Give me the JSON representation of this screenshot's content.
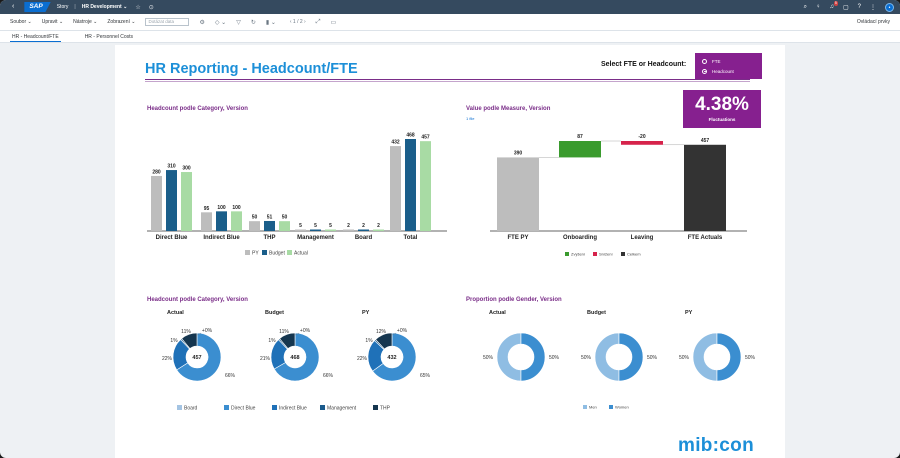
{
  "shell": {
    "logo": "SAP",
    "title": "Story",
    "app": "HR Development",
    "notifications": "5"
  },
  "toolbar": {
    "menus": [
      "Soubor",
      "Upravit",
      "Nástroje",
      "Zobrazení"
    ],
    "refresh_placeholder": "Dotázat data",
    "page": "1 / 2",
    "right_label": "Ovládací prvky"
  },
  "tabs": [
    "HR - Headcount/FTE",
    "HR - Personnel Costs"
  ],
  "page": {
    "title": "HR Reporting - Headcount/FTE",
    "select_label": "Select FTE or Headcount:",
    "options": [
      "FTE",
      "Headcount"
    ],
    "selected": "Headcount",
    "logo": "mib:con"
  },
  "kpi": {
    "value": "4.38%",
    "label": "Fluctuations"
  },
  "colors": {
    "py": "#bdbdbd",
    "budget": "#1a5e8a",
    "actual": "#a8dba4",
    "board": "#a4c4e3",
    "direct_blue": "#3b8ed0",
    "indirect_blue": "#1f71b8",
    "management": "#1a5a8c",
    "thp": "#15364f",
    "men": "#8fbde3",
    "women": "#3b8ed0",
    "increase": "#3a9b2e",
    "decrease": "#d6234b",
    "total": "#333333",
    "accent": "#7a2d88"
  },
  "chart_data": [
    {
      "type": "bar",
      "title": "Headcount podle Category, Version",
      "categories": [
        "Direct Blue",
        "Indirect Blue",
        "THP",
        "Management",
        "Board",
        "Total"
      ],
      "series": [
        {
          "name": "PY",
          "values": [
            280,
            95,
            50,
            5,
            2,
            432
          ]
        },
        {
          "name": "Budget",
          "values": [
            310,
            100,
            51,
            5,
            2,
            468
          ]
        },
        {
          "name": "Actual",
          "values": [
            300,
            100,
            50,
            5,
            2,
            457
          ]
        }
      ]
    },
    {
      "type": "bar",
      "subtype": "waterfall",
      "title": "Value podle Measure, Version",
      "note": "1 file",
      "categories": [
        "FTE PY",
        "Onboarding",
        "Leaving",
        "FTE Actuals"
      ],
      "values": [
        390,
        87,
        -20,
        457
      ],
      "value_labels": [
        "390",
        "87",
        "-20",
        "457"
      ],
      "legend": [
        "Zvýšení",
        "Snížení",
        "Celkem"
      ]
    },
    {
      "type": "pie",
      "subtype": "donut",
      "title": "Headcount podle Category, Version",
      "legend": [
        "Board",
        "Direct Blue",
        "Indirect Blue",
        "Management",
        "THP"
      ],
      "charts": [
        {
          "name": "Actual",
          "center": "457",
          "values": [
            0,
            66,
            22,
            1,
            11
          ],
          "labels": [
            "+0%",
            "66%",
            "22%",
            "1%",
            "11%"
          ]
        },
        {
          "name": "Budget",
          "center": "468",
          "values": [
            0,
            66,
            21,
            1,
            11
          ],
          "labels": [
            "+0%",
            "66%",
            "21%",
            "1%",
            "11%"
          ]
        },
        {
          "name": "PY",
          "center": "432",
          "values": [
            0,
            65,
            22,
            1,
            12
          ],
          "labels": [
            "+0%",
            "65%",
            "22%",
            "1%",
            "12%"
          ]
        }
      ]
    },
    {
      "type": "pie",
      "subtype": "donut",
      "title": "Proportion podle Gender, Version",
      "legend": [
        "Men",
        "Women"
      ],
      "charts": [
        {
          "name": "Actual",
          "values": [
            50,
            50
          ],
          "labels": [
            "50%",
            "50%"
          ]
        },
        {
          "name": "Budget",
          "values": [
            50,
            50
          ],
          "labels": [
            "50%",
            "50%"
          ]
        },
        {
          "name": "PY",
          "values": [
            50,
            50
          ],
          "labels": [
            "50%",
            "50%"
          ]
        }
      ]
    }
  ]
}
